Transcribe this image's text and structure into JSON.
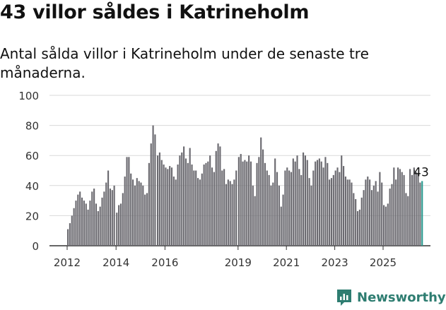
{
  "title": "43 villor såldes i Katrineholm",
  "subtitle": "Antal sålda villor i Katrineholm under de senaste tre månaderna.",
  "brand": "Newsworthy",
  "colors": {
    "bar": "#6b6a70",
    "highlight": "#2a9a8f",
    "grid": "#d9d9d9",
    "axis": "#333333",
    "brand": "#2e7d71"
  },
  "chart_data": {
    "type": "bar",
    "title": "",
    "xlabel": "",
    "ylabel": "",
    "ylim": [
      0,
      100
    ],
    "y_ticks": [
      0,
      20,
      40,
      60,
      80,
      100
    ],
    "x_tick_labels": [
      "2012",
      "2014",
      "2016",
      "2019",
      "2021",
      "2023",
      "2025"
    ],
    "x_start": "2012-02",
    "interval": "month",
    "gaps_before_index": [
      24,
      44,
      84
    ],
    "values": [
      11,
      15,
      20,
      25,
      30,
      34,
      36,
      32,
      30,
      28,
      24,
      30,
      36,
      38,
      28,
      23,
      26,
      32,
      36,
      42,
      50,
      38,
      37,
      40,
      22,
      27,
      28,
      35,
      46,
      59,
      59,
      48,
      44,
      40,
      45,
      43,
      42,
      40,
      34,
      35,
      55,
      68,
      80,
      74,
      60,
      62,
      57,
      54,
      52,
      51,
      53,
      52,
      46,
      44,
      54,
      60,
      62,
      66,
      58,
      55,
      65,
      54,
      50,
      50,
      45,
      44,
      48,
      54,
      55,
      56,
      60,
      52,
      49,
      63,
      68,
      66,
      50,
      51,
      41,
      44,
      43,
      41,
      44,
      50,
      59,
      61,
      56,
      57,
      56,
      60,
      56,
      40,
      33,
      55,
      59,
      72,
      64,
      55,
      50,
      47,
      40,
      42,
      58,
      49,
      40,
      26,
      34,
      50,
      52,
      50,
      49,
      58,
      56,
      60,
      51,
      47,
      62,
      60,
      57,
      45,
      40,
      50,
      56,
      57,
      58,
      56,
      52,
      59,
      55,
      44,
      45,
      47,
      50,
      52,
      49,
      60,
      53,
      46,
      44,
      44,
      42,
      35,
      31,
      23,
      24,
      32,
      37,
      44,
      46,
      44,
      37,
      40,
      43,
      36,
      49,
      42,
      27,
      26,
      28,
      38,
      41,
      52,
      44,
      52,
      51,
      49,
      47,
      35,
      33,
      51,
      47,
      52,
      49,
      48,
      42,
      43
    ],
    "highlight_last": true,
    "annotation": "43"
  }
}
